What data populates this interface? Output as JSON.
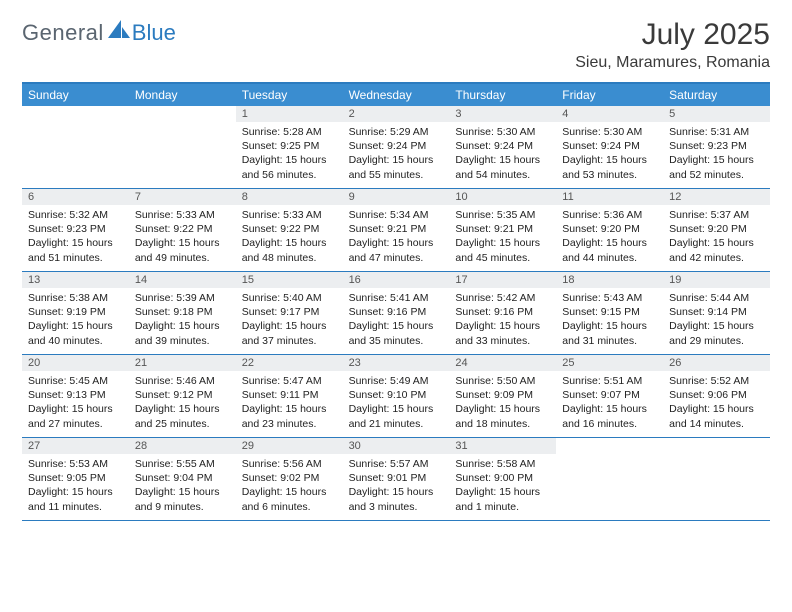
{
  "logo": {
    "text1": "General",
    "text2": "Blue"
  },
  "title": "July 2025",
  "subtitle": "Sieu, Maramures, Romania",
  "colors": {
    "accent": "#3a8dd0",
    "border": "#2b7bbf",
    "daynum_bg": "#eceef0",
    "text": "#222222",
    "muted": "#5a6570"
  },
  "header_days": [
    "Sunday",
    "Monday",
    "Tuesday",
    "Wednesday",
    "Thursday",
    "Friday",
    "Saturday"
  ],
  "weeks": [
    [
      {
        "n": "",
        "sr": "",
        "ss": "",
        "dl": ""
      },
      {
        "n": "",
        "sr": "",
        "ss": "",
        "dl": ""
      },
      {
        "n": "1",
        "sr": "Sunrise: 5:28 AM",
        "ss": "Sunset: 9:25 PM",
        "dl": "Daylight: 15 hours and 56 minutes."
      },
      {
        "n": "2",
        "sr": "Sunrise: 5:29 AM",
        "ss": "Sunset: 9:24 PM",
        "dl": "Daylight: 15 hours and 55 minutes."
      },
      {
        "n": "3",
        "sr": "Sunrise: 5:30 AM",
        "ss": "Sunset: 9:24 PM",
        "dl": "Daylight: 15 hours and 54 minutes."
      },
      {
        "n": "4",
        "sr": "Sunrise: 5:30 AM",
        "ss": "Sunset: 9:24 PM",
        "dl": "Daylight: 15 hours and 53 minutes."
      },
      {
        "n": "5",
        "sr": "Sunrise: 5:31 AM",
        "ss": "Sunset: 9:23 PM",
        "dl": "Daylight: 15 hours and 52 minutes."
      }
    ],
    [
      {
        "n": "6",
        "sr": "Sunrise: 5:32 AM",
        "ss": "Sunset: 9:23 PM",
        "dl": "Daylight: 15 hours and 51 minutes."
      },
      {
        "n": "7",
        "sr": "Sunrise: 5:33 AM",
        "ss": "Sunset: 9:22 PM",
        "dl": "Daylight: 15 hours and 49 minutes."
      },
      {
        "n": "8",
        "sr": "Sunrise: 5:33 AM",
        "ss": "Sunset: 9:22 PM",
        "dl": "Daylight: 15 hours and 48 minutes."
      },
      {
        "n": "9",
        "sr": "Sunrise: 5:34 AM",
        "ss": "Sunset: 9:21 PM",
        "dl": "Daylight: 15 hours and 47 minutes."
      },
      {
        "n": "10",
        "sr": "Sunrise: 5:35 AM",
        "ss": "Sunset: 9:21 PM",
        "dl": "Daylight: 15 hours and 45 minutes."
      },
      {
        "n": "11",
        "sr": "Sunrise: 5:36 AM",
        "ss": "Sunset: 9:20 PM",
        "dl": "Daylight: 15 hours and 44 minutes."
      },
      {
        "n": "12",
        "sr": "Sunrise: 5:37 AM",
        "ss": "Sunset: 9:20 PM",
        "dl": "Daylight: 15 hours and 42 minutes."
      }
    ],
    [
      {
        "n": "13",
        "sr": "Sunrise: 5:38 AM",
        "ss": "Sunset: 9:19 PM",
        "dl": "Daylight: 15 hours and 40 minutes."
      },
      {
        "n": "14",
        "sr": "Sunrise: 5:39 AM",
        "ss": "Sunset: 9:18 PM",
        "dl": "Daylight: 15 hours and 39 minutes."
      },
      {
        "n": "15",
        "sr": "Sunrise: 5:40 AM",
        "ss": "Sunset: 9:17 PM",
        "dl": "Daylight: 15 hours and 37 minutes."
      },
      {
        "n": "16",
        "sr": "Sunrise: 5:41 AM",
        "ss": "Sunset: 9:16 PM",
        "dl": "Daylight: 15 hours and 35 minutes."
      },
      {
        "n": "17",
        "sr": "Sunrise: 5:42 AM",
        "ss": "Sunset: 9:16 PM",
        "dl": "Daylight: 15 hours and 33 minutes."
      },
      {
        "n": "18",
        "sr": "Sunrise: 5:43 AM",
        "ss": "Sunset: 9:15 PM",
        "dl": "Daylight: 15 hours and 31 minutes."
      },
      {
        "n": "19",
        "sr": "Sunrise: 5:44 AM",
        "ss": "Sunset: 9:14 PM",
        "dl": "Daylight: 15 hours and 29 minutes."
      }
    ],
    [
      {
        "n": "20",
        "sr": "Sunrise: 5:45 AM",
        "ss": "Sunset: 9:13 PM",
        "dl": "Daylight: 15 hours and 27 minutes."
      },
      {
        "n": "21",
        "sr": "Sunrise: 5:46 AM",
        "ss": "Sunset: 9:12 PM",
        "dl": "Daylight: 15 hours and 25 minutes."
      },
      {
        "n": "22",
        "sr": "Sunrise: 5:47 AM",
        "ss": "Sunset: 9:11 PM",
        "dl": "Daylight: 15 hours and 23 minutes."
      },
      {
        "n": "23",
        "sr": "Sunrise: 5:49 AM",
        "ss": "Sunset: 9:10 PM",
        "dl": "Daylight: 15 hours and 21 minutes."
      },
      {
        "n": "24",
        "sr": "Sunrise: 5:50 AM",
        "ss": "Sunset: 9:09 PM",
        "dl": "Daylight: 15 hours and 18 minutes."
      },
      {
        "n": "25",
        "sr": "Sunrise: 5:51 AM",
        "ss": "Sunset: 9:07 PM",
        "dl": "Daylight: 15 hours and 16 minutes."
      },
      {
        "n": "26",
        "sr": "Sunrise: 5:52 AM",
        "ss": "Sunset: 9:06 PM",
        "dl": "Daylight: 15 hours and 14 minutes."
      }
    ],
    [
      {
        "n": "27",
        "sr": "Sunrise: 5:53 AM",
        "ss": "Sunset: 9:05 PM",
        "dl": "Daylight: 15 hours and 11 minutes."
      },
      {
        "n": "28",
        "sr": "Sunrise: 5:55 AM",
        "ss": "Sunset: 9:04 PM",
        "dl": "Daylight: 15 hours and 9 minutes."
      },
      {
        "n": "29",
        "sr": "Sunrise: 5:56 AM",
        "ss": "Sunset: 9:02 PM",
        "dl": "Daylight: 15 hours and 6 minutes."
      },
      {
        "n": "30",
        "sr": "Sunrise: 5:57 AM",
        "ss": "Sunset: 9:01 PM",
        "dl": "Daylight: 15 hours and 3 minutes."
      },
      {
        "n": "31",
        "sr": "Sunrise: 5:58 AM",
        "ss": "Sunset: 9:00 PM",
        "dl": "Daylight: 15 hours and 1 minute."
      },
      {
        "n": "",
        "sr": "",
        "ss": "",
        "dl": ""
      },
      {
        "n": "",
        "sr": "",
        "ss": "",
        "dl": ""
      }
    ]
  ]
}
